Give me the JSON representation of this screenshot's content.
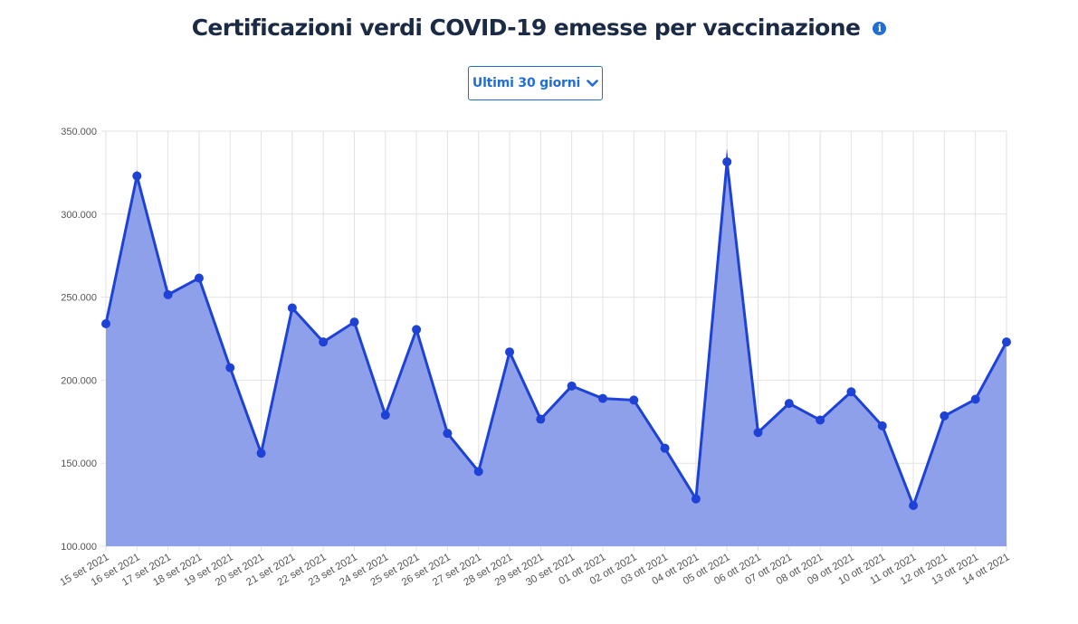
{
  "page": {
    "title": "Certificazioni verdi COVID-19 emesse per vaccinazione",
    "info_icon": "info-circle-icon",
    "range_selector": {
      "label": "Ultimi 30 giorni",
      "icon": "chevron-down-icon"
    }
  },
  "chart_data": {
    "type": "area",
    "title": "",
    "xlabel": "",
    "ylabel": "",
    "x": [
      "15 set 2021",
      "16 set 2021",
      "17 set 2021",
      "18 set 2021",
      "19 set 2021",
      "20 set 2021",
      "21 set 2021",
      "22 set 2021",
      "23 set 2021",
      "24 set 2021",
      "25 set 2021",
      "26 set 2021",
      "27 set 2021",
      "28 set 2021",
      "29 set 2021",
      "30 set 2021",
      "01 ott 2021",
      "02 ott 2021",
      "03 ott 2021",
      "04 ott 2021",
      "05 ott 2021",
      "06 ott 2021",
      "07 ott 2021",
      "08 ott 2021",
      "09 ott 2021",
      "10 ott 2021",
      "11 ott 2021",
      "12 ott 2021",
      "13 ott 2021",
      "14 ott 2021"
    ],
    "series": [
      {
        "values": [
          234000,
          323000,
          251500,
          261500,
          207500,
          156000,
          243500,
          223000,
          235000,
          179000,
          230500,
          168000,
          145000,
          217000,
          176500,
          196500,
          189000,
          188000,
          159000,
          128500,
          331500,
          168500,
          186000,
          176000,
          193000,
          172500,
          124500,
          178500,
          188500,
          223000
        ]
      }
    ],
    "ylim": [
      100000,
      350000
    ],
    "yticks": [
      "100.000",
      "150.000",
      "200.000",
      "250.000",
      "300.000",
      "350.000"
    ],
    "grid": true,
    "legend": "none",
    "colors": {
      "line": "#1e42d6",
      "fill": "#8ea0e9",
      "grid": "#e2e2e2",
      "tick_text": "#555555"
    }
  }
}
